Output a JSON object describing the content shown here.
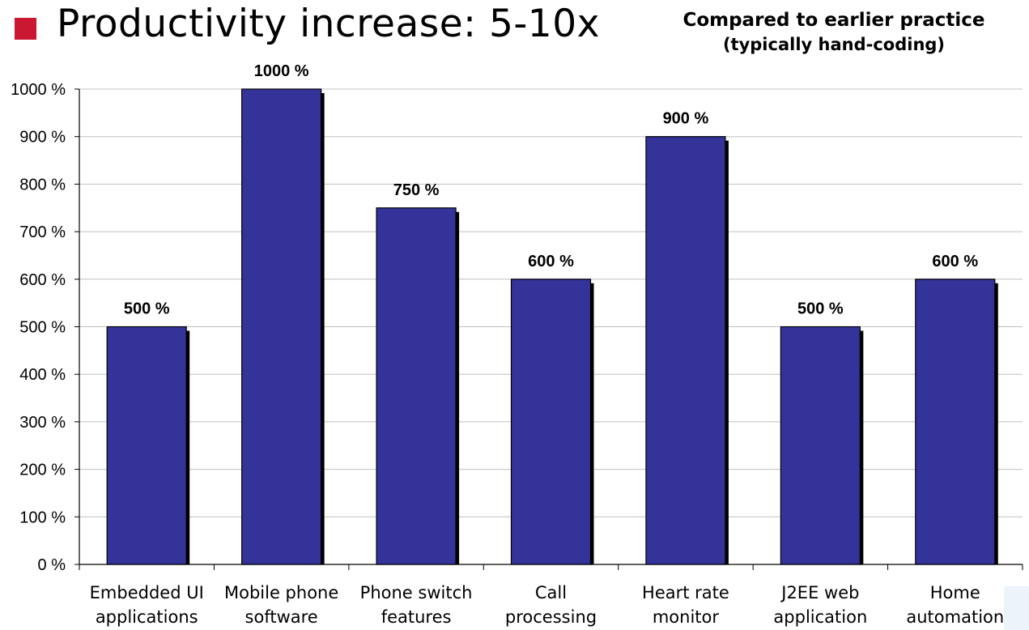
{
  "header": {
    "title": "Productivity increase: 5-10x",
    "subtitle_line1": "Compared to earlier practice",
    "subtitle_line2": "(typically hand-coding)"
  },
  "colors": {
    "bar_fill": "#333399",
    "bar_shadow": "#000000",
    "bullet": "#cc1733",
    "grid": "#c0c0c0"
  },
  "chart_data": {
    "type": "bar",
    "title": "",
    "xlabel": "",
    "ylabel": "",
    "categories": [
      [
        "Embedded UI",
        "applications"
      ],
      [
        "Mobile phone",
        "software"
      ],
      [
        "Phone switch",
        "features"
      ],
      [
        "Call",
        "processing"
      ],
      [
        "Heart rate",
        "monitor"
      ],
      [
        "J2EE web",
        "application"
      ],
      [
        "Home",
        "automation"
      ]
    ],
    "values": [
      500,
      1000,
      750,
      600,
      900,
      500,
      600
    ],
    "data_labels": [
      "500 %",
      "1000 %",
      "750 %",
      "600 %",
      "900 %",
      "500 %",
      "600 %"
    ],
    "ylim": [
      0,
      1000
    ],
    "yticks": [
      0,
      100,
      200,
      300,
      400,
      500,
      600,
      700,
      800,
      900,
      1000
    ],
    "ytick_labels": [
      "0 %",
      "100 %",
      "200 %",
      "300 %",
      "400 %",
      "500 %",
      "600 %",
      "700 %",
      "800 %",
      "900 %",
      "1000 %"
    ],
    "grid": true,
    "legend": "none"
  }
}
